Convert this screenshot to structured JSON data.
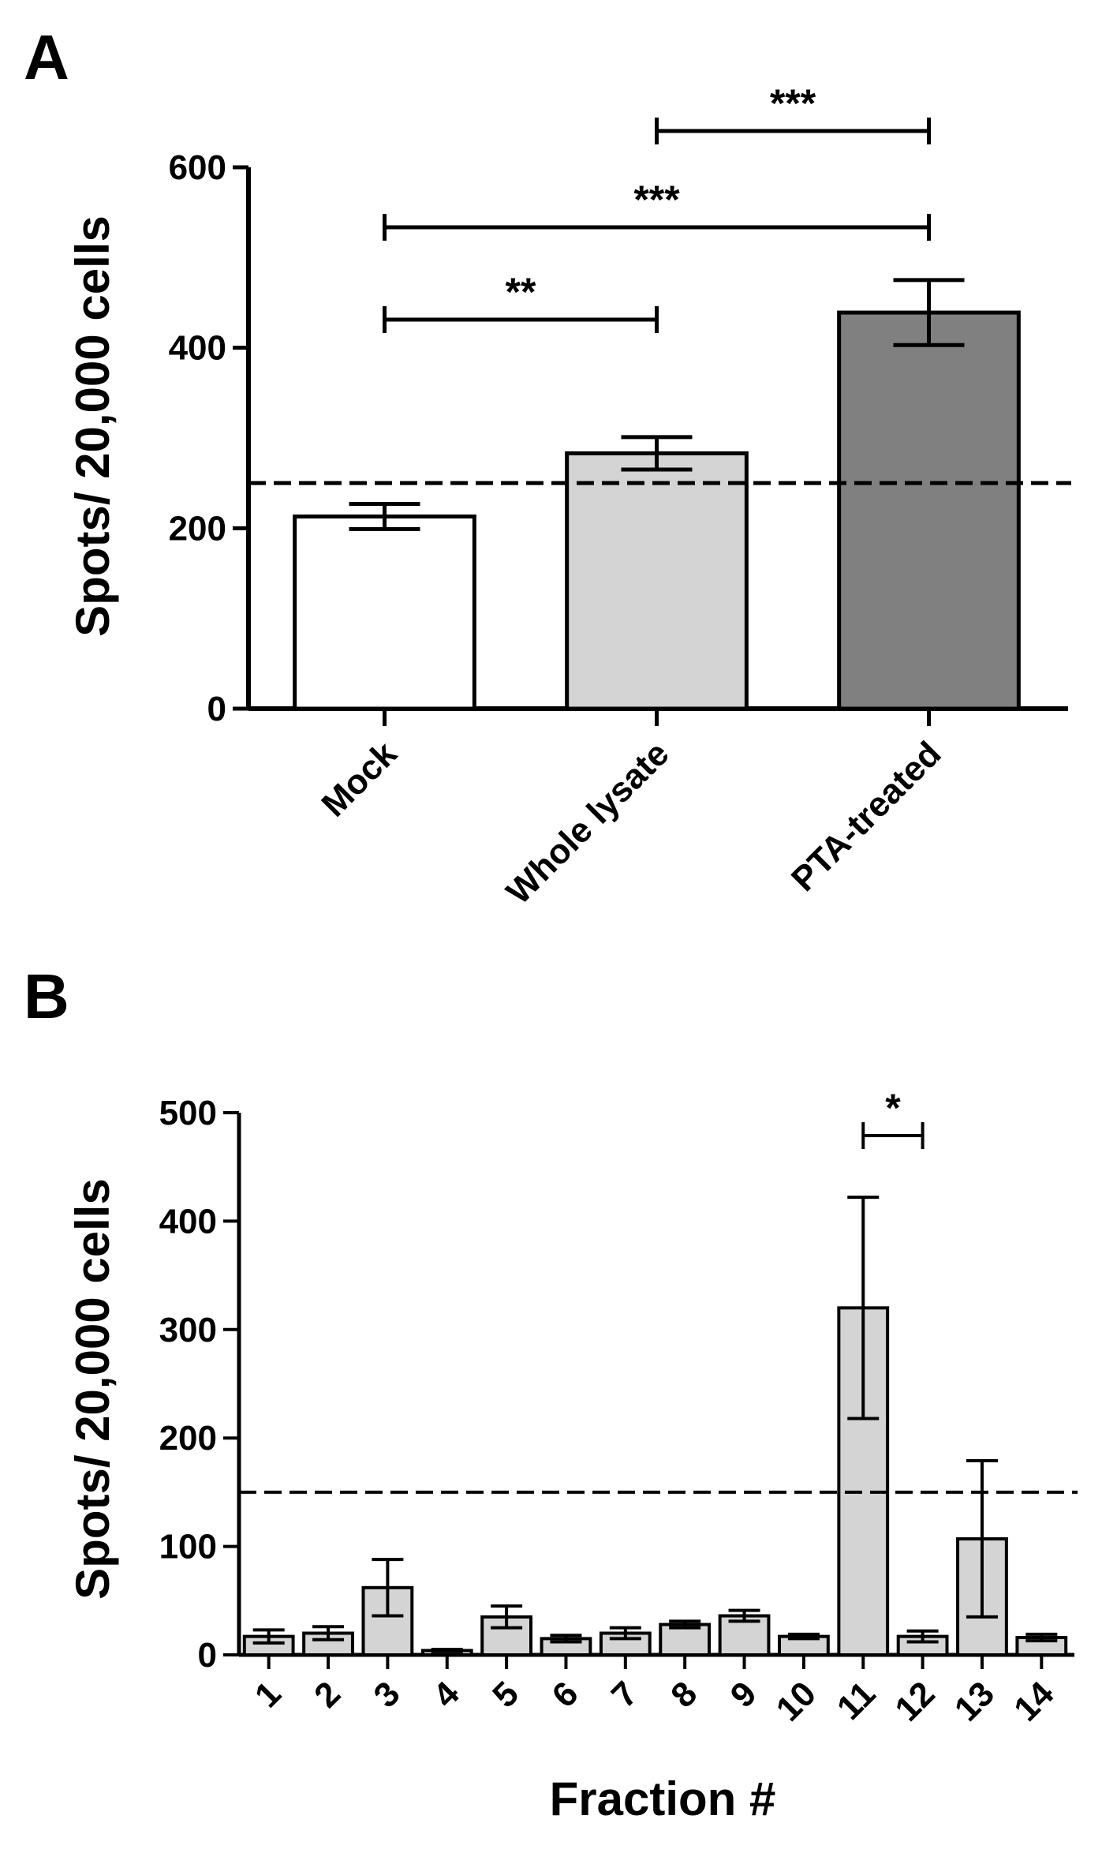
{
  "chart_data": [
    {
      "panel": "A",
      "type": "bar",
      "ylabel": "Spots/ 20,000 cells",
      "xlabel": "",
      "ylim": [
        0,
        600
      ],
      "yticks": [
        0,
        200,
        400,
        600
      ],
      "categories": [
        "Mock",
        "Whole lysate",
        "PTA-treated"
      ],
      "values": [
        213,
        283,
        439
      ],
      "errors": [
        14,
        18,
        36
      ],
      "colors": [
        "#ffffff",
        "#d4d4d4",
        "#808080"
      ],
      "threshold": 250,
      "significance": [
        {
          "from": 0,
          "to": 1,
          "label": "**"
        },
        {
          "from": 0,
          "to": 2,
          "label": "***"
        },
        {
          "from": 1,
          "to": 2,
          "label": "***"
        }
      ]
    },
    {
      "panel": "B",
      "type": "bar",
      "ylabel": "Spots/ 20,000 cells",
      "xlabel": "Fraction #",
      "ylim": [
        0,
        500
      ],
      "yticks": [
        0,
        100,
        200,
        300,
        400,
        500
      ],
      "categories": [
        "1",
        "2",
        "3",
        "4",
        "5",
        "6",
        "7",
        "8",
        "9",
        "10",
        "11",
        "12",
        "13",
        "14"
      ],
      "values": [
        17,
        20,
        62,
        4,
        35,
        15,
        20,
        28,
        36,
        17,
        320,
        17,
        107,
        16
      ],
      "errors": [
        6,
        6,
        26,
        1,
        10,
        3,
        5,
        3,
        5,
        2,
        102,
        5,
        72,
        3
      ],
      "colors": [
        "#d4d4d4"
      ],
      "threshold": 150,
      "significance": [
        {
          "from": 10,
          "to": 11,
          "label": "*"
        }
      ]
    }
  ]
}
